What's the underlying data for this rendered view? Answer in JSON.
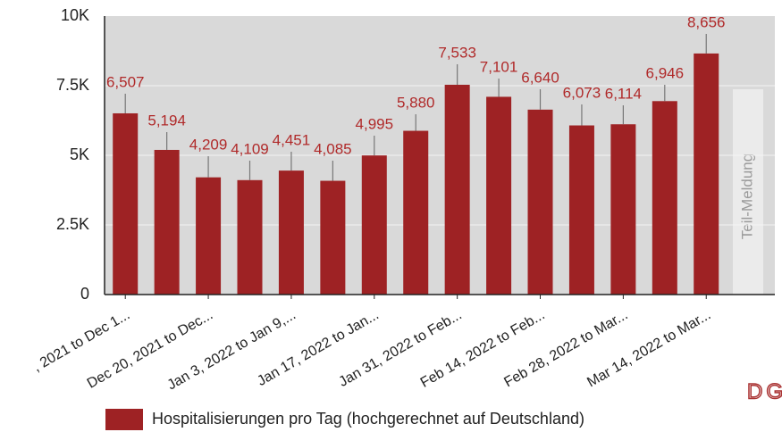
{
  "chart_data": {
    "type": "bar",
    "categories": [
      ", 2021 to Dec 1...",
      null,
      "Dec 20, 2021 to Dec...",
      null,
      "Jan 3, 2022 to Jan 9,...",
      null,
      "Jan 17, 2022 to Jan...",
      null,
      "Jan 31, 2022 to Feb...",
      null,
      "Feb 14, 2022 to Feb...",
      null,
      "Feb 28, 2022 to Mar...",
      null,
      "Mar 14, 2022 to Mar..."
    ],
    "series": [
      {
        "name": "Hospitalisierungen pro Tag (hochgerechnet auf Deutschland)",
        "color": "#9e2224",
        "values": [
          6507,
          5194,
          4209,
          4109,
          4451,
          4085,
          4995,
          5880,
          7533,
          7101,
          6640,
          6073,
          6114,
          6946,
          8656
        ],
        "value_labels": [
          "6,507",
          "5,194",
          "4,209",
          "4,109",
          "4,451",
          "4,085",
          "4,995",
          "5,880",
          "7,533",
          "7,101",
          "6,640",
          "6,073",
          "6,114",
          "6,946",
          "8,656"
        ],
        "upper": [
          7212,
          5833,
          4968,
          4808,
          5128,
          4808,
          5705,
          6474,
          8269,
          7756,
          7372,
          6827,
          6795,
          7532,
          9359
        ]
      }
    ],
    "ylim": [
      0,
      10000
    ],
    "yticks": [
      0,
      {
        "value": 2500,
        "label": "2.5K"
      },
      {
        "value": 5000,
        "label": "5K"
      },
      {
        "value": 7500,
        "label": "7.5K"
      },
      {
        "value": 10000,
        "label": "10K"
      }
    ],
    "grid": true,
    "annotation": "Teil-Meldung",
    "logo_text": "DG"
  }
}
